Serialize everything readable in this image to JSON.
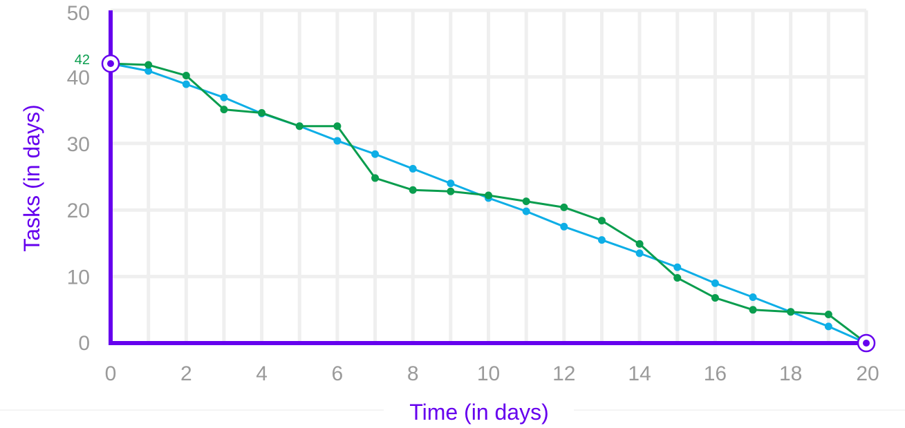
{
  "chart_data": {
    "type": "line",
    "xlabel": "Time (in days)",
    "ylabel": "Tasks (in days)",
    "xlim": [
      0,
      20
    ],
    "ylim": [
      0,
      50
    ],
    "x_ticks": [
      "0",
      "2",
      "4",
      "6",
      "8",
      "10",
      "12",
      "14",
      "16",
      "18",
      "20"
    ],
    "y_ticks": [
      "0",
      "10",
      "20",
      "30",
      "40",
      "50"
    ],
    "grid": true,
    "start_label": "42",
    "series": [
      {
        "color": "#0eaee6",
        "x": [
          0,
          1,
          2,
          3,
          4,
          5,
          6,
          7,
          8,
          9,
          10,
          11,
          12,
          13,
          14,
          15,
          16,
          17,
          18,
          19,
          20
        ],
        "y": [
          42.0,
          40.9,
          38.9,
          36.9,
          34.5,
          32.6,
          30.4,
          28.4,
          26.2,
          24.0,
          21.8,
          19.8,
          17.5,
          15.5,
          13.5,
          11.4,
          9.0,
          6.9,
          4.7,
          2.5,
          0
        ]
      },
      {
        "color": "#0a9d4e",
        "x": [
          0,
          1,
          2,
          3,
          4,
          5,
          6,
          7,
          8,
          9,
          10,
          11,
          12,
          13,
          14,
          15,
          16,
          17,
          18,
          19,
          20
        ],
        "y": [
          42.0,
          41.8,
          40.2,
          35.1,
          34.6,
          32.6,
          32.6,
          24.8,
          23.0,
          22.8,
          22.2,
          21.3,
          20.4,
          18.4,
          14.9,
          9.8,
          6.8,
          5.0,
          4.7,
          4.3,
          0
        ]
      }
    ],
    "colors": {
      "axis": "#6600ee",
      "grid": "#efefef",
      "tick": "#9a9a9a",
      "last_x_tick": "#e8192c",
      "start_label": "#0a9d4e"
    }
  }
}
